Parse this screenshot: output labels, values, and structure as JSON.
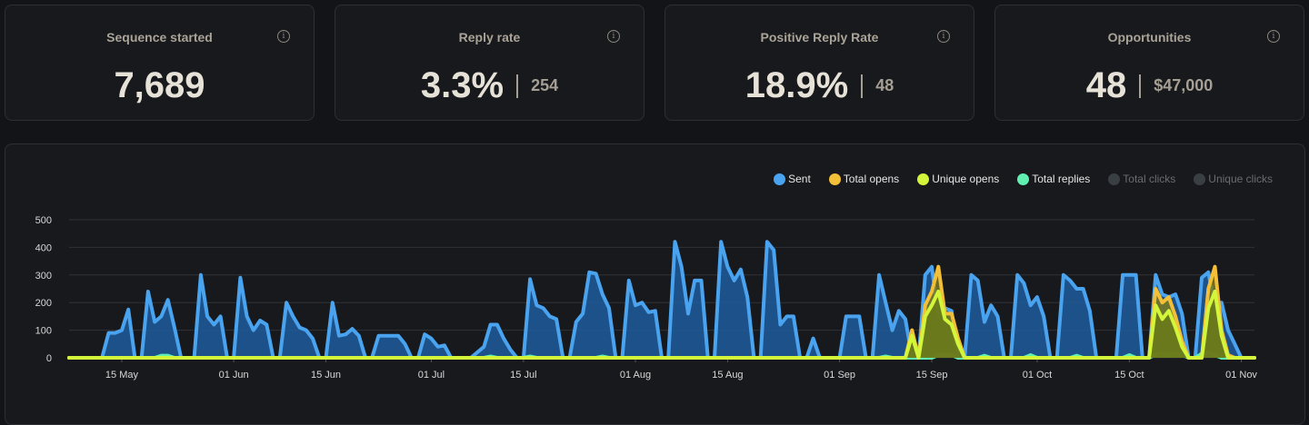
{
  "cards": [
    {
      "title": "Sequence started",
      "value": "7,689"
    },
    {
      "title": "Reply rate",
      "value": "3.3%",
      "sub": "254"
    },
    {
      "title": "Positive Reply Rate",
      "value": "18.9%",
      "sub": "48"
    },
    {
      "title": "Opportunities",
      "value": "48",
      "sub": "$47,000"
    }
  ],
  "chart_data": {
    "type": "area",
    "x_start": "07 May",
    "x_step": "1 day",
    "num_days": 181,
    "x_ticks": [
      {
        "label": "15 May",
        "day": 8
      },
      {
        "label": "01 Jun",
        "day": 25
      },
      {
        "label": "15 Jun",
        "day": 39
      },
      {
        "label": "01 Jul",
        "day": 55
      },
      {
        "label": "15 Jul",
        "day": 69
      },
      {
        "label": "01 Aug",
        "day": 86
      },
      {
        "label": "15 Aug",
        "day": 100
      },
      {
        "label": "01 Sep",
        "day": 117
      },
      {
        "label": "15 Sep",
        "day": 131
      },
      {
        "label": "01 Oct",
        "day": 147
      },
      {
        "label": "15 Oct",
        "day": 161
      },
      {
        "label": "01 Nov",
        "day": 178
      }
    ],
    "y_ticks": [
      0,
      100,
      200,
      300,
      400,
      500
    ],
    "ylim": [
      0,
      500
    ],
    "grid": true,
    "legend_position": "top-right",
    "series": [
      {
        "name": "Sent",
        "color": "#4aa3ef",
        "fill": "#1f5c9c",
        "enabled": true,
        "values": [
          0,
          0,
          0,
          0,
          0,
          0,
          90,
          90,
          100,
          175,
          0,
          0,
          240,
          130,
          150,
          210,
          110,
          0,
          0,
          0,
          300,
          150,
          120,
          150,
          0,
          0,
          290,
          150,
          100,
          135,
          120,
          0,
          0,
          200,
          150,
          110,
          100,
          70,
          0,
          0,
          200,
          80,
          85,
          105,
          80,
          0,
          0,
          80,
          80,
          80,
          80,
          50,
          0,
          0,
          85,
          70,
          40,
          45,
          0,
          0,
          0,
          0,
          20,
          40,
          120,
          120,
          70,
          30,
          0,
          0,
          285,
          190,
          180,
          150,
          140,
          0,
          0,
          130,
          160,
          310,
          305,
          230,
          180,
          0,
          0,
          280,
          190,
          200,
          165,
          170,
          0,
          0,
          420,
          330,
          160,
          280,
          280,
          0,
          0,
          420,
          330,
          280,
          320,
          220,
          0,
          0,
          420,
          390,
          120,
          150,
          150,
          0,
          0,
          70,
          0,
          0,
          0,
          0,
          150,
          150,
          150,
          0,
          0,
          300,
          200,
          100,
          170,
          140,
          0,
          0,
          300,
          330,
          150,
          180,
          170,
          0,
          0,
          300,
          280,
          130,
          190,
          150,
          0,
          0,
          300,
          270,
          190,
          220,
          150,
          0,
          0,
          300,
          280,
          250,
          250,
          170,
          0,
          0,
          0,
          0,
          300,
          300,
          300,
          0,
          0,
          300,
          230,
          220,
          230,
          160,
          0,
          0,
          290,
          310,
          180,
          200,
          100,
          50,
          0,
          0,
          0
        ]
      },
      {
        "name": "Total replies",
        "color": "#5ff0b2",
        "fill": "#2c6a55",
        "enabled": true,
        "nonzero": {
          "14": 8,
          "15": 8,
          "64": 5,
          "70": 5,
          "81": 5,
          "124": 5,
          "132": 10,
          "133": 12,
          "134": 10,
          "139": 8,
          "146": 10,
          "153": 8,
          "161": 10,
          "165": 12,
          "166": 15,
          "167": 10,
          "168": 15,
          "169": 12,
          "172": 15,
          "173": 18,
          "174": 10
        }
      },
      {
        "name": "Total opens",
        "color": "#f4bf38",
        "fill": "#7a7a1e",
        "enabled": true,
        "nonzero": {
          "128": 100,
          "130": 190,
          "131": 240,
          "132": 330,
          "133": 160,
          "134": 160,
          "135": 70,
          "165": 250,
          "166": 200,
          "167": 220,
          "168": 150,
          "169": 60,
          "173": 250,
          "174": 330,
          "175": 100,
          "176": 10
        }
      },
      {
        "name": "Unique opens",
        "color": "#d3f53a",
        "fill": "#6b7a1a",
        "enabled": true,
        "nonzero": {
          "128": 80,
          "130": 150,
          "131": 190,
          "132": 240,
          "133": 140,
          "134": 120,
          "135": 50,
          "165": 190,
          "166": 140,
          "167": 170,
          "168": 110,
          "169": 40,
          "173": 180,
          "174": 240,
          "175": 80
        }
      },
      {
        "name": "Total clicks",
        "color": "#3a3f44",
        "enabled": false
      },
      {
        "name": "Unique clicks",
        "color": "#3a3f44",
        "enabled": false
      }
    ],
    "legend_order": [
      "Sent",
      "Total opens",
      "Unique opens",
      "Total replies",
      "Total clicks",
      "Unique clicks"
    ]
  }
}
